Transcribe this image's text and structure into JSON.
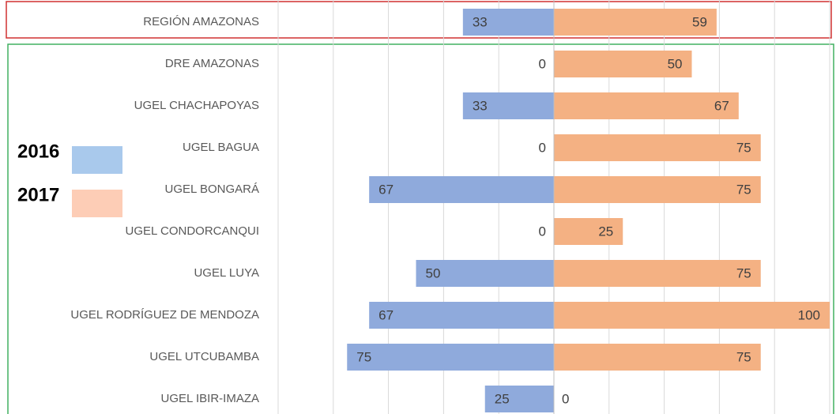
{
  "chart_data": {
    "type": "diverging-bar",
    "categories": [
      "REGIÓN AMAZONAS",
      "DRE AMAZONAS",
      "UGEL CHACHAPOYAS",
      "UGEL BAGUA",
      "UGEL BONGARÁ",
      "UGEL CONDORCANQUI",
      "UGEL LUYA",
      "UGEL RODRÍGUEZ DE MENDOZA",
      "UGEL UTCUBAMBA",
      "UGEL IBIR-IMAZA"
    ],
    "series": [
      {
        "name": "2016",
        "color": "#8faadc",
        "legend_color": "#a9c9ec",
        "values": [
          33,
          0,
          33,
          0,
          67,
          0,
          50,
          67,
          75,
          25
        ]
      },
      {
        "name": "2017",
        "color": "#f4b183",
        "legend_color": "#fdcdb6",
        "values": [
          59,
          50,
          67,
          75,
          75,
          25,
          75,
          100,
          75,
          0
        ]
      }
    ],
    "xlim": [
      -100,
      100
    ],
    "xticks": [
      -100,
      -80,
      -60,
      -40,
      -20,
      0,
      20,
      40,
      60,
      80,
      100
    ],
    "grid": true,
    "legend": "left"
  }
}
